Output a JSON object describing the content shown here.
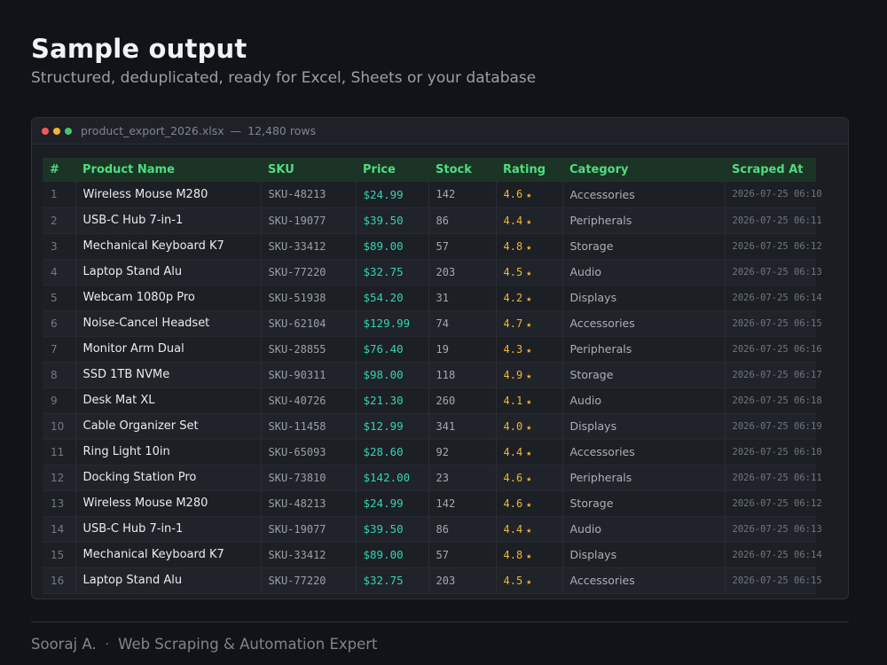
{
  "header": {
    "title": "Sample output",
    "subtitle": "Structured, deduplicated, ready for Excel, Sheets or your database"
  },
  "window": {
    "filename": "product_export_2026.xlsx",
    "separator": "—",
    "row_count": "12,480 rows"
  },
  "table": {
    "columns": [
      "#",
      "Product Name",
      "SKU",
      "Price",
      "Stock",
      "Rating",
      "Category",
      "Scraped At"
    ],
    "rows": [
      {
        "num": "1",
        "name": "Wireless Mouse M280",
        "sku": "SKU-48213",
        "price": "$24.99",
        "stock": "142",
        "rating": "4.6",
        "category": "Accessories",
        "scraped_at": "2026-07-25 06:10"
      },
      {
        "num": "2",
        "name": "USB-C Hub 7-in-1",
        "sku": "SKU-19077",
        "price": "$39.50",
        "stock": "86",
        "rating": "4.4",
        "category": "Peripherals",
        "scraped_at": "2026-07-25 06:11"
      },
      {
        "num": "3",
        "name": "Mechanical Keyboard K7",
        "sku": "SKU-33412",
        "price": "$89.00",
        "stock": "57",
        "rating": "4.8",
        "category": "Storage",
        "scraped_at": "2026-07-25 06:12"
      },
      {
        "num": "4",
        "name": "Laptop Stand Alu",
        "sku": "SKU-77220",
        "price": "$32.75",
        "stock": "203",
        "rating": "4.5",
        "category": "Audio",
        "scraped_at": "2026-07-25 06:13"
      },
      {
        "num": "5",
        "name": "Webcam 1080p Pro",
        "sku": "SKU-51938",
        "price": "$54.20",
        "stock": "31",
        "rating": "4.2",
        "category": "Displays",
        "scraped_at": "2026-07-25 06:14"
      },
      {
        "num": "6",
        "name": "Noise-Cancel Headset",
        "sku": "SKU-62104",
        "price": "$129.99",
        "stock": "74",
        "rating": "4.7",
        "category": "Accessories",
        "scraped_at": "2026-07-25 06:15"
      },
      {
        "num": "7",
        "name": "Monitor Arm Dual",
        "sku": "SKU-28855",
        "price": "$76.40",
        "stock": "19",
        "rating": "4.3",
        "category": "Peripherals",
        "scraped_at": "2026-07-25 06:16"
      },
      {
        "num": "8",
        "name": "SSD 1TB NVMe",
        "sku": "SKU-90311",
        "price": "$98.00",
        "stock": "118",
        "rating": "4.9",
        "category": "Storage",
        "scraped_at": "2026-07-25 06:17"
      },
      {
        "num": "9",
        "name": "Desk Mat XL",
        "sku": "SKU-40726",
        "price": "$21.30",
        "stock": "260",
        "rating": "4.1",
        "category": "Audio",
        "scraped_at": "2026-07-25 06:18"
      },
      {
        "num": "10",
        "name": "Cable Organizer Set",
        "sku": "SKU-11458",
        "price": "$12.99",
        "stock": "341",
        "rating": "4.0",
        "category": "Displays",
        "scraped_at": "2026-07-25 06:19"
      },
      {
        "num": "11",
        "name": "Ring Light 10in",
        "sku": "SKU-65093",
        "price": "$28.60",
        "stock": "92",
        "rating": "4.4",
        "category": "Accessories",
        "scraped_at": "2026-07-25 06:10"
      },
      {
        "num": "12",
        "name": "Docking Station Pro",
        "sku": "SKU-73810",
        "price": "$142.00",
        "stock": "23",
        "rating": "4.6",
        "category": "Peripherals",
        "scraped_at": "2026-07-25 06:11"
      },
      {
        "num": "13",
        "name": "Wireless Mouse M280",
        "sku": "SKU-48213",
        "price": "$24.99",
        "stock": "142",
        "rating": "4.6",
        "category": "Storage",
        "scraped_at": "2026-07-25 06:12"
      },
      {
        "num": "14",
        "name": "USB-C Hub 7-in-1",
        "sku": "SKU-19077",
        "price": "$39.50",
        "stock": "86",
        "rating": "4.4",
        "category": "Audio",
        "scraped_at": "2026-07-25 06:13"
      },
      {
        "num": "15",
        "name": "Mechanical Keyboard K7",
        "sku": "SKU-33412",
        "price": "$89.00",
        "stock": "57",
        "rating": "4.8",
        "category": "Displays",
        "scraped_at": "2026-07-25 06:14"
      },
      {
        "num": "16",
        "name": "Laptop Stand Alu",
        "sku": "SKU-77220",
        "price": "$32.75",
        "stock": "203",
        "rating": "4.5",
        "category": "Accessories",
        "scraped_at": "2026-07-25 06:15"
      }
    ]
  },
  "icons": {
    "rating_star": "★",
    "window_controls": [
      "close-dot-icon",
      "minimize-dot-icon",
      "maximize-dot-icon"
    ]
  },
  "colors": {
    "background": "#111318",
    "header_text": "#4fdc7f",
    "price": "#34d3b4",
    "rating": "#f2b632",
    "dot_red": "#ee5b5b",
    "dot_yellow": "#f2b632",
    "dot_green": "#3ec76d"
  },
  "footer": {
    "author": "Sooraj A.",
    "separator": "·",
    "tagline": "Web Scraping & Automation Expert"
  }
}
